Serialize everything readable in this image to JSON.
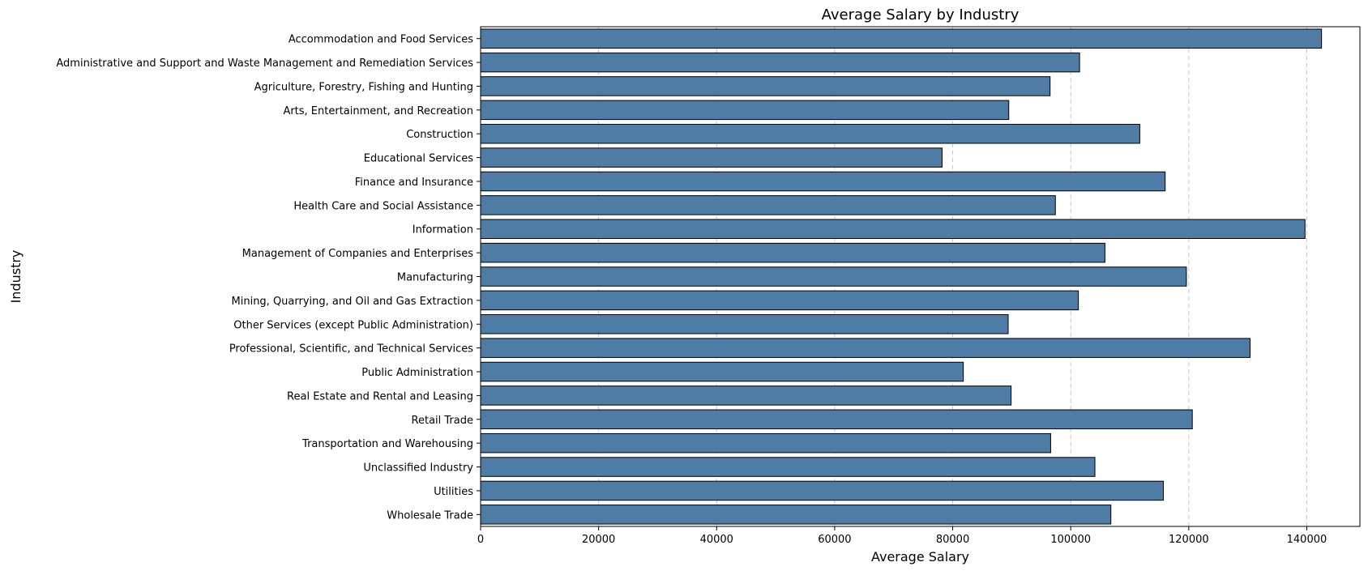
{
  "chart_data": {
    "type": "bar",
    "orientation": "horizontal",
    "title": "Average Salary by Industry",
    "xlabel": "Average Salary",
    "ylabel": "Industry",
    "xlim": [
      0,
      149000
    ],
    "xticks": [
      0,
      20000,
      40000,
      60000,
      80000,
      100000,
      120000,
      140000
    ],
    "xtick_labels": [
      "0",
      "20000",
      "40000",
      "60000",
      "80000",
      "100000",
      "120000",
      "140000"
    ],
    "grid": "vertical dashed",
    "bar_color": "#4f7ca5",
    "bar_edge_color": "#000000",
    "categories": [
      "Accommodation and Food Services",
      "Administrative and Support and Waste Management and Remediation Services",
      "Agriculture, Forestry, Fishing and Hunting",
      "Arts, Entertainment, and Recreation",
      "Construction",
      "Educational Services",
      "Finance and Insurance",
      "Health Care and Social Assistance",
      "Information",
      "Management of Companies and Enterprises",
      "Manufacturing",
      "Mining, Quarrying, and Oil and Gas Extraction",
      "Other Services (except Public Administration)",
      "Professional, Scientific, and Technical Services",
      "Public Administration",
      "Real Estate and Rental and Leasing",
      "Retail Trade",
      "Transportation and Warehousing",
      "Unclassified Industry",
      "Utilities",
      "Wholesale Trade"
    ],
    "values": [
      142500,
      101500,
      96500,
      89500,
      111700,
      78200,
      116000,
      97400,
      139700,
      105800,
      119600,
      101300,
      89400,
      130400,
      81800,
      89900,
      120600,
      96600,
      104100,
      115700,
      106800
    ]
  }
}
